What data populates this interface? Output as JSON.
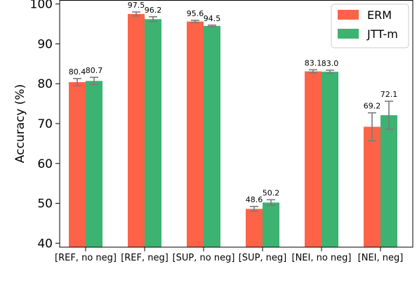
{
  "chart_data": {
    "type": "bar",
    "categories": [
      "[REF, no neg]",
      "[REF, neg]",
      "[SUP, no neg]",
      "[SUP, neg]",
      "[NEI, no neg]",
      "[NEI, neg]"
    ],
    "series": [
      {
        "name": "ERM",
        "color": "#FF6347",
        "values": [
          80.4,
          97.5,
          95.6,
          48.6,
          83.1,
          69.2
        ],
        "errors": [
          0.9,
          0.5,
          0.3,
          0.6,
          0.4,
          3.5
        ],
        "labels": [
          "80.4",
          "97.5",
          "95.6",
          "48.6",
          "83.1",
          "69.2"
        ]
      },
      {
        "name": "JTT-m",
        "color": "#3CB371",
        "values": [
          80.7,
          96.2,
          94.5,
          50.2,
          83.0,
          72.1
        ],
        "errors": [
          0.9,
          0.6,
          0.2,
          0.7,
          0.4,
          3.5
        ],
        "labels": [
          "80.7",
          "96.2",
          "94.5",
          "50.2",
          "83.0",
          "72.1"
        ]
      }
    ],
    "ylabel": "Accuracy (%)",
    "xlabel": "",
    "ylim": [
      39,
      101
    ],
    "yticks": [
      "40",
      "50",
      "60",
      "70",
      "80",
      "90",
      "100"
    ],
    "legend_position": "top-right",
    "grid": false
  }
}
